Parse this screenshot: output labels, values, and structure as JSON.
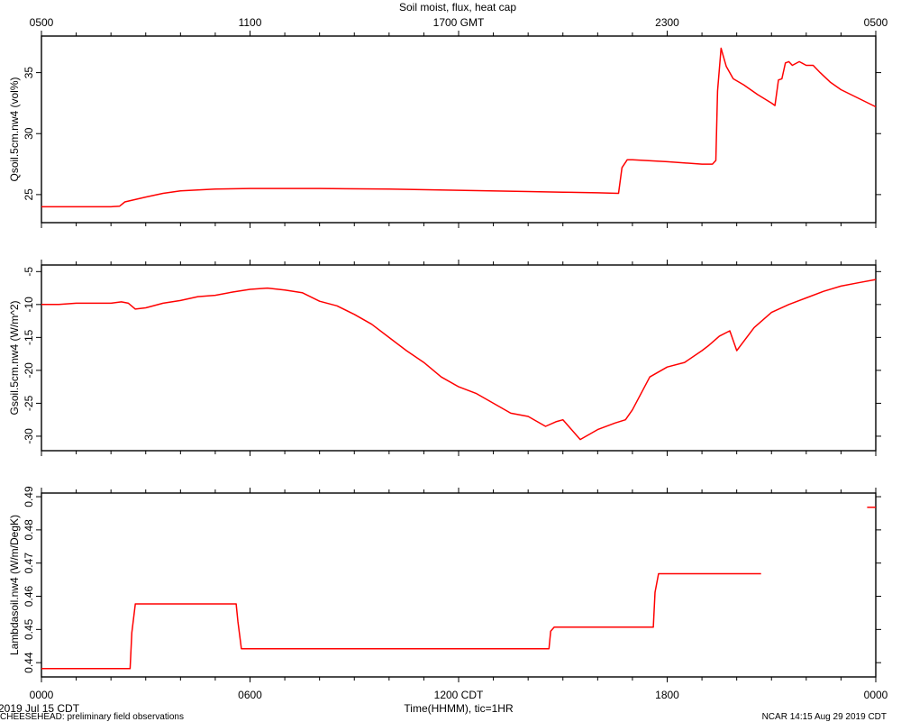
{
  "page": {
    "title": "Soil moist, flux, heat cap",
    "bottom_left_date": "2019 Jul 15 CDT",
    "footer_left": "CHEESEHEAD: preliminary field observations",
    "footer_right": "NCAR 14:15 Aug 29 2019 CDT",
    "line_color": "#ff0000"
  },
  "chart_data": [
    {
      "type": "line",
      "ylabel": "Qsoil.5cm.nw4 (vol%)",
      "ylim": [
        22.7,
        38.0
      ],
      "yticks": [
        25,
        30,
        35
      ],
      "xlim": [
        0,
        24
      ],
      "top_axis": {
        "label": "Soil moist, flux, heat cap",
        "ticks": [
          0,
          6,
          12,
          18,
          24
        ],
        "tick_labels": [
          "0500",
          "1100",
          "1700 GMT",
          "2300",
          "0500"
        ]
      },
      "series": [
        {
          "x": [
            0,
            1.0,
            2.0,
            2.25,
            2.4,
            3.0,
            3.5,
            4.0,
            5.0,
            6.0,
            8.0,
            10.0,
            12.0,
            14.0,
            15.0,
            16.0,
            16.6,
            16.7,
            16.85,
            17.0,
            18.0,
            19.0,
            19.3,
            19.4,
            19.45,
            19.55,
            19.6,
            19.7,
            19.9,
            20.2,
            20.6,
            21.0,
            21.1,
            21.2,
            21.3,
            21.4,
            21.5,
            21.6,
            21.8,
            22.0,
            22.2,
            22.4,
            22.7,
            23.0,
            23.5,
            24.0
          ],
          "values": [
            24.0,
            24.0,
            24.0,
            24.05,
            24.4,
            24.8,
            25.1,
            25.3,
            25.45,
            25.5,
            25.5,
            25.45,
            25.35,
            25.25,
            25.2,
            25.15,
            25.1,
            27.2,
            27.85,
            27.85,
            27.7,
            27.5,
            27.5,
            27.8,
            33.5,
            37.0,
            36.5,
            35.5,
            34.5,
            34.0,
            33.2,
            32.5,
            32.3,
            34.4,
            34.5,
            35.8,
            35.9,
            35.6,
            35.9,
            35.6,
            35.6,
            35.0,
            34.2,
            33.6,
            32.9,
            32.2
          ]
        }
      ]
    },
    {
      "type": "line",
      "ylabel": "Gsoil.5cm.nw4 (W/m^2)",
      "ylim": [
        -32.2,
        -4.0
      ],
      "yticks": [
        -5,
        -10,
        -15,
        -20,
        -25,
        -30
      ],
      "xlim": [
        0,
        24
      ],
      "series": [
        {
          "x": [
            0,
            0.5,
            1.0,
            1.5,
            2.0,
            2.3,
            2.5,
            2.7,
            3.0,
            3.5,
            4.0,
            4.5,
            5.0,
            5.5,
            6.0,
            6.5,
            7.0,
            7.5,
            8.0,
            8.5,
            9.0,
            9.5,
            10.0,
            10.5,
            11.0,
            11.5,
            12.0,
            12.5,
            13.0,
            13.5,
            14.0,
            14.5,
            14.8,
            15.0,
            15.5,
            16.0,
            16.5,
            16.8,
            17.0,
            17.5,
            18.0,
            18.5,
            19.0,
            19.2,
            19.5,
            19.8,
            20.0,
            20.5,
            21.0,
            21.5,
            22.0,
            22.5,
            23.0,
            23.5,
            24.0
          ],
          "values": [
            -10.0,
            -10.0,
            -9.8,
            -9.8,
            -9.8,
            -9.6,
            -9.8,
            -10.7,
            -10.5,
            -9.8,
            -9.4,
            -8.8,
            -8.6,
            -8.1,
            -7.7,
            -7.5,
            -7.8,
            -8.2,
            -9.5,
            -10.2,
            -11.5,
            -13.0,
            -15.0,
            -17.0,
            -18.8,
            -21.0,
            -22.5,
            -23.5,
            -25.0,
            -26.5,
            -27.0,
            -28.5,
            -27.8,
            -27.5,
            -30.5,
            -29.0,
            -28.0,
            -27.5,
            -26.0,
            -21.0,
            -19.5,
            -18.8,
            -17.0,
            -16.2,
            -14.8,
            -14.0,
            -17.0,
            -13.5,
            -11.2,
            -10.0,
            -9.0,
            -8.0,
            -7.2,
            -6.7,
            -6.2
          ]
        }
      ]
    },
    {
      "type": "line",
      "ylabel": "Lambdasoil.nw4 (W/m/DegK)",
      "ylim": [
        0.4357,
        0.4911
      ],
      "yticks": [
        0.44,
        0.45,
        0.46,
        0.47,
        0.48,
        0.49
      ],
      "xlim": [
        0,
        24
      ],
      "xlabel": "Time(HHMM), tic=1HR",
      "xticks": [
        0,
        6,
        12,
        18,
        24
      ],
      "tick_labels": [
        "0000",
        "0600",
        "1200 CDT",
        "1800",
        "0000"
      ],
      "series": [
        {
          "x": [
            0,
            2.55,
            2.6,
            2.7,
            5.6,
            5.65,
            5.75,
            14.6,
            14.65,
            14.75,
            17.6,
            17.65,
            17.75,
            20.7
          ],
          "values": [
            0.4382,
            0.4382,
            0.449,
            0.4577,
            0.4577,
            0.4525,
            0.4442,
            0.4442,
            0.4495,
            0.4507,
            0.4507,
            0.4612,
            0.4668,
            0.4668
          ]
        },
        {
          "x": [
            23.75,
            24.0
          ],
          "values": [
            0.4868,
            0.4868
          ]
        }
      ]
    }
  ]
}
